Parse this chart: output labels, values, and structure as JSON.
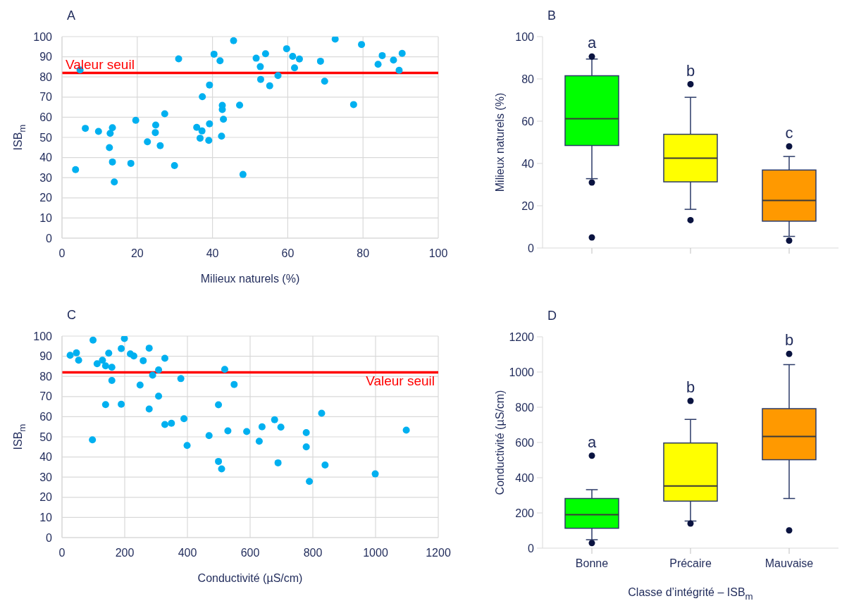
{
  "chart_data": [
    {
      "type": "scatter",
      "title": "A",
      "xlabel": "Milieux naturels (%)",
      "ylabel": "ISB$_{m}$",
      "color": "#00b0f0",
      "marker": "circle",
      "grid": true,
      "x": [
        4.8,
        3.6,
        6.2,
        9.7,
        12.8,
        13.4,
        12.6,
        13.4,
        13.9,
        18.3,
        19.6,
        22.7,
        24.8,
        24.9,
        26.1,
        27.3,
        29.9,
        31,
        35.8,
        36.7,
        37.2,
        37.3,
        39.2,
        39,
        39.2,
        40.4,
        42,
        42.4,
        42.6,
        42.6,
        42.9,
        45.6,
        47.2,
        48.1,
        51.6,
        52.7,
        52.8,
        54.1,
        55.2,
        57.4,
        59.7,
        61.3,
        63.1,
        61.8,
        68.7,
        69.8,
        72.6,
        77.5,
        79.6,
        84,
        85.1,
        88.1,
        89.6,
        90.4
      ],
      "values": [
        83.5,
        34,
        54.5,
        53,
        52,
        54.8,
        44.9,
        37.8,
        27.9,
        37.1,
        58.5,
        47.8,
        52.4,
        56.1,
        45.9,
        61.7,
        36,
        89,
        55,
        49.6,
        53.2,
        70.2,
        76,
        48.5,
        56.7,
        91.3,
        88,
        50.6,
        65.9,
        63.8,
        59,
        98,
        66,
        31.6,
        89.3,
        85.1,
        78.8,
        91.5,
        75.6,
        80.7,
        94,
        90.2,
        88.9,
        84.5,
        87.8,
        77.9,
        98.8,
        66.3,
        96.1,
        86.3,
        90.6,
        88.4,
        83.3,
        91.7
      ],
      "xlim": [
        0,
        100
      ],
      "xticks": [
        0,
        20,
        40,
        60,
        80,
        100
      ],
      "ylim": [
        0,
        100
      ],
      "yticks": [
        0,
        10,
        20,
        30,
        40,
        50,
        60,
        70,
        80,
        90,
        100
      ],
      "ref_lines": [
        {
          "axis": "y",
          "value": 82,
          "label": "Valeur seuil",
          "color": "#ff0000"
        }
      ]
    },
    {
      "type": "box",
      "title": "B",
      "ylabel": "Milieux naturels (%)",
      "categories": [
        null,
        null,
        null
      ],
      "colors": [
        "#00ff00",
        "#ffff00",
        "#ff9900"
      ],
      "boxes": [
        {
          "low": 32.8,
          "q1": 48.5,
          "median": 61.2,
          "q3": 81.5,
          "high": 89.4,
          "outliers": [
            90.6,
            31,
            5
          ]
        },
        {
          "low": 18.3,
          "q1": 31.3,
          "median": 42.5,
          "q3": 53.8,
          "high": 71.3,
          "outliers": [
            77.5,
            13.2
          ]
        },
        {
          "low": 5.5,
          "q1": 12.7,
          "median": 22.5,
          "q3": 36.9,
          "high": 43.3,
          "outliers": [
            48.1,
            3.5
          ]
        }
      ],
      "ylim": [
        0,
        100
      ],
      "yticks": [
        0,
        20,
        40,
        60,
        80,
        100
      ],
      "annotations": [
        "a",
        "b",
        "c"
      ]
    },
    {
      "type": "scatter",
      "title": "C",
      "xlabel": "Conductivité (µS/cm)",
      "ylabel": "ISB$_{m}$",
      "color": "#00b0f0",
      "marker": "circle",
      "grid": true,
      "x": [
        26,
        46,
        53,
        99,
        97,
        112,
        129,
        139,
        149,
        159,
        159,
        139,
        189,
        189,
        199,
        218,
        229,
        249,
        259,
        278,
        278,
        289,
        308,
        308,
        328,
        328,
        349,
        379,
        389,
        399,
        469,
        499,
        499,
        509,
        519,
        529,
        549,
        589,
        629,
        638,
        678,
        689,
        698,
        779,
        779,
        789,
        828,
        839,
        999,
        1098
      ],
      "values": [
        90.5,
        91.7,
        88,
        98,
        48.5,
        86.3,
        88,
        85.2,
        91.5,
        84.5,
        78,
        66,
        93.8,
        66.2,
        98.8,
        91.2,
        90.1,
        75.7,
        87.8,
        94,
        63.8,
        80.6,
        83.2,
        70.2,
        89,
        56.1,
        56.7,
        78.9,
        59,
        45.7,
        50.6,
        65.9,
        37.8,
        34.1,
        83.5,
        53,
        76,
        52.6,
        47.8,
        55,
        58.5,
        37.1,
        54.8,
        52.1,
        45,
        27.9,
        61.7,
        36,
        31.6,
        53.3
      ],
      "xlim": [
        0,
        1200
      ],
      "xticks": [
        0,
        200,
        400,
        600,
        800,
        1000,
        1200
      ],
      "ylim": [
        0,
        100
      ],
      "yticks": [
        0,
        10,
        20,
        30,
        40,
        50,
        60,
        70,
        80,
        90,
        100
      ],
      "ref_lines": [
        {
          "axis": "y",
          "value": 82,
          "label": "Valeur seuil",
          "color": "#ff0000"
        }
      ]
    },
    {
      "type": "box",
      "title": "D",
      "xlabel": "Classe d’intégrité – ISB$_{m}$",
      "ylabel": "Conductivité (µS/cm)",
      "categories": [
        "Bonne",
        "Précaire",
        "Mauvaise"
      ],
      "colors": [
        "#00ff00",
        "#ffff00",
        "#ff9900"
      ],
      "boxes": [
        {
          "low": 48,
          "q1": 113,
          "median": 190,
          "q3": 282,
          "high": 332,
          "outliers": [
            525,
            29
          ]
        },
        {
          "low": 154,
          "q1": 267,
          "median": 353,
          "q3": 597,
          "high": 731,
          "outliers": [
            836,
            140
          ]
        },
        {
          "low": 282,
          "q1": 502,
          "median": 634,
          "q3": 792,
          "high": 1042,
          "outliers": [
            1103,
            101
          ]
        }
      ],
      "ylim": [
        0,
        1200
      ],
      "yticks": [
        0,
        200,
        400,
        600,
        800,
        1000,
        1200
      ],
      "annotations": [
        "a",
        "b",
        "b"
      ]
    }
  ]
}
